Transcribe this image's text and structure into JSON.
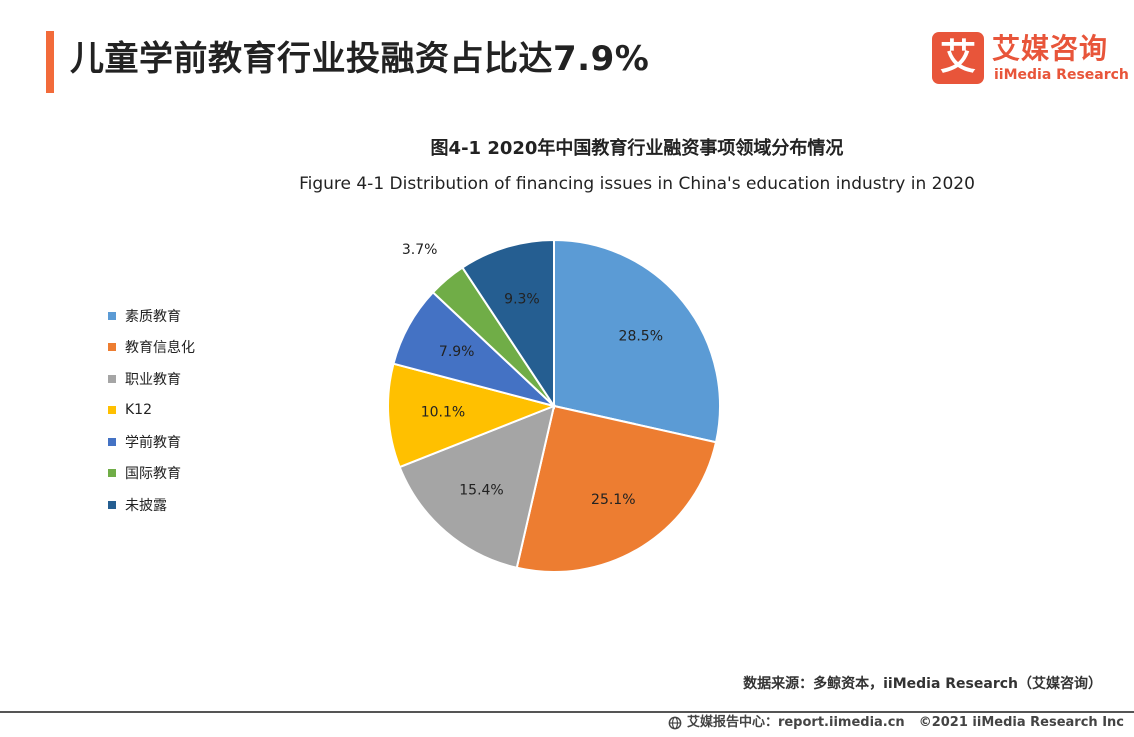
{
  "header": {
    "title": "儿童学前教育行业投融资占比达7.9%",
    "accent_color": "#F26B3A"
  },
  "logo": {
    "mark": "艾",
    "name_cn": "艾媒咨询",
    "name_en": "iiMedia Research",
    "color": "#E8553A"
  },
  "chart_data": {
    "type": "pie",
    "title": "图4-1 2020年中国教育行业融资事项领域分布情况",
    "subtitle": "Figure 4-1 Distribution of financing issues in China's education industry in 2020",
    "legend_position": "left",
    "slices": [
      {
        "label": "素质教育",
        "value": 28.5,
        "display": "28.5%",
        "color": "#5B9BD5"
      },
      {
        "label": "教育信息化",
        "value": 25.1,
        "display": "25.1%",
        "color": "#ED7D31"
      },
      {
        "label": "职业教育",
        "value": 15.4,
        "display": "15.4%",
        "color": "#A5A5A5"
      },
      {
        "label": "K12",
        "value": 10.1,
        "display": "10.1%",
        "color": "#FFC000"
      },
      {
        "label": "学前教育",
        "value": 7.9,
        "display": "7.9%",
        "color": "#4472C4"
      },
      {
        "label": "国际教育",
        "value": 3.7,
        "display": "3.7%",
        "color": "#70AD47"
      },
      {
        "label": "未披露",
        "value": 9.3,
        "display": "9.3%",
        "color": "#255E91"
      }
    ]
  },
  "source": "数据来源：多鲸资本，iiMedia Research（艾媒咨询）",
  "footer": {
    "icon": "globe-icon",
    "site": "艾媒报告中心：report.iimedia.cn",
    "copyright": "©2021  iiMedia Research  Inc"
  }
}
